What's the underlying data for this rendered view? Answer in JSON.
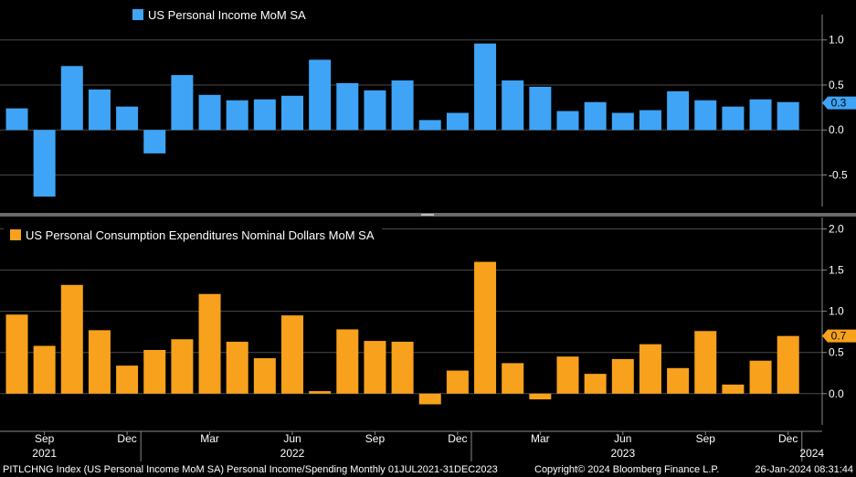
{
  "colors": {
    "background": "#000000",
    "grid": "#4a4a4a",
    "axis": "#8a8a8a",
    "divider": "#6a6a6a",
    "income_bar": "#3fa4f5",
    "pce_bar": "#f8a11c",
    "label_text": "#ffffff"
  },
  "chart_data": [
    {
      "type": "bar",
      "title": "US Personal Income MoM SA",
      "legend_position": "top-left",
      "ylim": [
        -0.85,
        1.2
      ],
      "yticks": [
        -0.5,
        0.0,
        0.5,
        1.0
      ],
      "ytick_labels": [
        "-0.5",
        "0.0",
        "0.5",
        "1.0"
      ],
      "last_value_label": "0.3",
      "last_value": 0.3,
      "values": [
        0.24,
        -0.74,
        0.71,
        0.45,
        0.26,
        -0.26,
        0.61,
        0.39,
        0.33,
        0.34,
        0.38,
        0.78,
        0.52,
        0.44,
        0.55,
        0.11,
        0.19,
        0.96,
        0.55,
        0.48,
        0.21,
        0.31,
        0.19,
        0.22,
        0.43,
        0.33,
        0.26,
        0.34,
        0.31
      ]
    },
    {
      "type": "bar",
      "title": "US Personal Consumption Expenditures Nominal Dollars MoM SA",
      "legend_position": "top-left",
      "ylim": [
        -0.38,
        2.05
      ],
      "yticks": [
        0.0,
        0.5,
        1.0,
        1.5,
        2.0
      ],
      "ytick_labels": [
        "0.0",
        "0.5",
        "1.0",
        "1.5",
        "2.0"
      ],
      "last_value_label": "0.7",
      "last_value": 0.7,
      "values": [
        0.96,
        0.58,
        1.32,
        0.77,
        0.34,
        0.53,
        0.66,
        1.21,
        0.63,
        0.43,
        0.95,
        0.03,
        0.78,
        0.64,
        0.63,
        -0.13,
        0.28,
        1.6,
        0.37,
        -0.07,
        0.45,
        0.24,
        0.42,
        0.6,
        0.31,
        0.76,
        0.11,
        0.4,
        0.7
      ]
    }
  ],
  "x_axis": {
    "month_labels": [
      {
        "index": 1,
        "label": "Sep"
      },
      {
        "index": 4,
        "label": "Dec"
      },
      {
        "index": 7,
        "label": "Mar"
      },
      {
        "index": 10,
        "label": "Jun"
      },
      {
        "index": 13,
        "label": "Sep"
      },
      {
        "index": 16,
        "label": "Dec"
      },
      {
        "index": 19,
        "label": "Mar"
      },
      {
        "index": 22,
        "label": "Jun"
      },
      {
        "index": 25,
        "label": "Sep"
      },
      {
        "index": 28,
        "label": "Dec"
      }
    ],
    "year_labels": [
      "2021",
      "2022",
      "2023",
      "2024"
    ]
  },
  "footer": {
    "left": "PITLCHNG Index (US Personal Income MoM SA) Personal Income/Spending  Monthly 01JUL2021-31DEC2023",
    "center": "Copyright© 2024 Bloomberg Finance L.P.",
    "right": "26-Jan-2024 08:31:44"
  }
}
